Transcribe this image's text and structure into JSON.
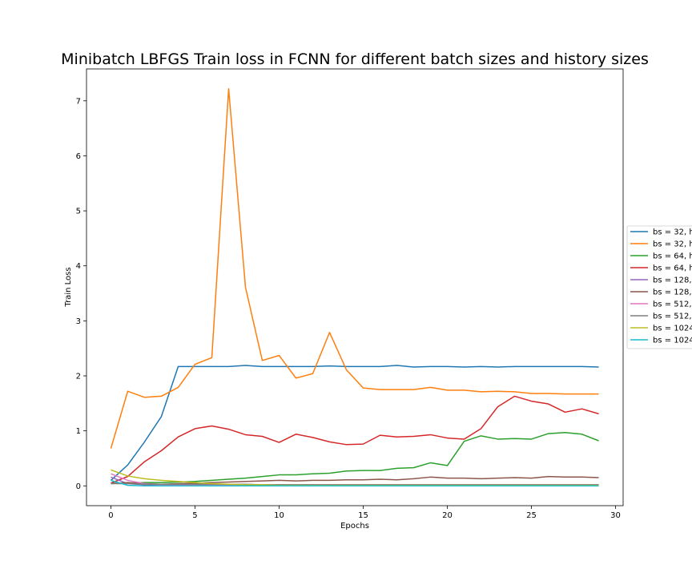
{
  "chart_data": {
    "type": "line",
    "title": "Minibatch LBFGS Train loss in FCNN for different batch sizes and history sizes",
    "xlabel": "Epochs",
    "ylabel": "Train Loss",
    "xlim": [
      -1.45,
      30.45
    ],
    "ylim": [
      -0.36,
      7.58
    ],
    "xticks": [
      0,
      5,
      10,
      15,
      20,
      25,
      30
    ],
    "yticks": [
      0,
      1,
      2,
      3,
      4,
      5,
      6,
      7
    ],
    "grid": false,
    "legend_position": "right (clipped at figure edge)",
    "x": [
      0,
      1,
      2,
      3,
      4,
      5,
      6,
      7,
      8,
      9,
      10,
      11,
      12,
      13,
      14,
      15,
      16,
      17,
      18,
      19,
      20,
      21,
      22,
      23,
      24,
      25,
      26,
      27,
      28,
      29
    ],
    "series": [
      {
        "name": "bs = 32, h",
        "color": "#1f77b4",
        "values": [
          0.1,
          0.38,
          0.8,
          1.26,
          2.17,
          2.17,
          2.17,
          2.17,
          2.19,
          2.17,
          2.17,
          2.17,
          2.17,
          2.18,
          2.17,
          2.17,
          2.17,
          2.19,
          2.16,
          2.17,
          2.17,
          2.16,
          2.17,
          2.16,
          2.17,
          2.17,
          2.17,
          2.17,
          2.17,
          2.16
        ]
      },
      {
        "name": "bs = 32, h",
        "color": "#ff7f0e",
        "values": [
          0.68,
          1.72,
          1.61,
          1.63,
          1.79,
          2.21,
          2.33,
          7.22,
          3.61,
          2.28,
          2.37,
          1.96,
          2.04,
          2.79,
          2.11,
          1.78,
          1.75,
          1.75,
          1.75,
          1.79,
          1.74,
          1.74,
          1.71,
          1.72,
          1.71,
          1.68,
          1.68,
          1.67,
          1.67,
          1.67
        ]
      },
      {
        "name": "bs = 64, h",
        "color": "#2ca02c",
        "values": [
          0.05,
          0.05,
          0.06,
          0.06,
          0.07,
          0.08,
          0.1,
          0.12,
          0.14,
          0.17,
          0.2,
          0.2,
          0.22,
          0.23,
          0.27,
          0.28,
          0.28,
          0.32,
          0.33,
          0.42,
          0.37,
          0.81,
          0.91,
          0.85,
          0.86,
          0.85,
          0.95,
          0.97,
          0.94,
          0.82
        ]
      },
      {
        "name": "bs = 64, h",
        "color": "#d62728",
        "values": [
          0.05,
          0.17,
          0.44,
          0.64,
          0.89,
          1.04,
          1.09,
          1.03,
          0.93,
          0.9,
          0.79,
          0.94,
          0.88,
          0.8,
          0.75,
          0.76,
          0.92,
          0.89,
          0.9,
          0.93,
          0.87,
          0.85,
          1.04,
          1.44,
          1.63,
          1.54,
          1.49,
          1.34,
          1.4,
          1.31
        ]
      },
      {
        "name": "bs = 128,",
        "color": "#9467bd",
        "values": [
          0.16,
          0.04,
          0.02,
          0.02,
          0.02,
          0.02,
          0.02,
          0.02,
          0.02,
          0.02,
          0.02,
          0.02,
          0.02,
          0.02,
          0.02,
          0.02,
          0.02,
          0.02,
          0.02,
          0.02,
          0.02,
          0.02,
          0.02,
          0.02,
          0.02,
          0.02,
          0.02,
          0.02,
          0.02,
          0.02
        ]
      },
      {
        "name": "bs = 128,",
        "color": "#8c564b",
        "values": [
          0.04,
          0.06,
          0.04,
          0.03,
          0.04,
          0.05,
          0.06,
          0.07,
          0.08,
          0.09,
          0.1,
          0.09,
          0.1,
          0.1,
          0.11,
          0.11,
          0.12,
          0.11,
          0.13,
          0.16,
          0.14,
          0.14,
          0.13,
          0.14,
          0.15,
          0.14,
          0.17,
          0.16,
          0.16,
          0.15
        ]
      },
      {
        "name": "bs = 512,",
        "color": "#e377c2",
        "values": [
          0.22,
          0.1,
          0.04,
          0.02,
          0.02,
          0.02,
          0.02,
          0.02,
          0.02,
          0.02,
          0.02,
          0.02,
          0.02,
          0.02,
          0.02,
          0.02,
          0.02,
          0.02,
          0.02,
          0.02,
          0.02,
          0.02,
          0.02,
          0.02,
          0.02,
          0.02,
          0.02,
          0.02,
          0.02,
          0.02
        ]
      },
      {
        "name": "bs = 512,",
        "color": "#7f7f7f",
        "values": [
          0.04,
          0.04,
          0.03,
          0.03,
          0.03,
          0.03,
          0.03,
          0.03,
          0.03,
          0.02,
          0.02,
          0.02,
          0.02,
          0.02,
          0.02,
          0.02,
          0.02,
          0.02,
          0.02,
          0.02,
          0.02,
          0.02,
          0.02,
          0.02,
          0.02,
          0.02,
          0.02,
          0.02,
          0.02,
          0.02
        ]
      },
      {
        "name": "bs = 1024",
        "color": "#bcbd22",
        "values": [
          0.29,
          0.18,
          0.13,
          0.1,
          0.08,
          0.06,
          0.04,
          0.03,
          0.02,
          0.02,
          0.01,
          0.01,
          0.01,
          0.01,
          0.01,
          0.01,
          0.01,
          0.01,
          0.01,
          0.01,
          0.01,
          0.01,
          0.01,
          0.01,
          0.01,
          0.01,
          0.01,
          0.01,
          0.01,
          0.01
        ]
      },
      {
        "name": "bs = 1024",
        "color": "#17becf",
        "values": [
          0.1,
          0.01,
          0.0,
          0.0,
          0.0,
          0.0,
          0.0,
          0.0,
          0.0,
          0.0,
          0.0,
          0.0,
          0.0,
          0.0,
          0.0,
          0.0,
          0.0,
          0.0,
          0.0,
          0.0,
          0.0,
          0.0,
          0.0,
          0.0,
          0.0,
          0.0,
          0.0,
          0.0,
          0.0,
          0.0
        ]
      }
    ]
  }
}
